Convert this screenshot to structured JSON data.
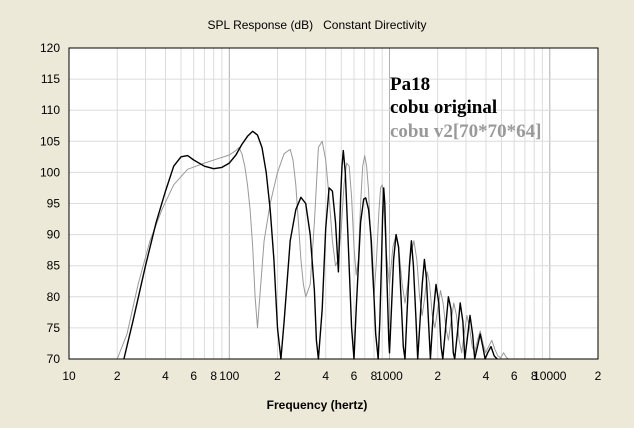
{
  "chart_data": {
    "type": "line",
    "title": "SPL Response (dB)   Constant Directivity",
    "xlabel": "Frequency (hertz)",
    "ylabel": "",
    "xscale": "log",
    "xlim": [
      10,
      20000
    ],
    "ylim": [
      70,
      120
    ],
    "yticks": [
      70,
      75,
      80,
      85,
      90,
      95,
      100,
      105,
      110,
      115,
      120
    ],
    "xtick_labels": [
      {
        "value": 10,
        "label": "10"
      },
      {
        "value": 20,
        "label": "2"
      },
      {
        "value": 40,
        "label": "4"
      },
      {
        "value": 60,
        "label": "6"
      },
      {
        "value": 80,
        "label": "8"
      },
      {
        "value": 100,
        "label": "100"
      },
      {
        "value": 200,
        "label": "2"
      },
      {
        "value": 400,
        "label": "4"
      },
      {
        "value": 600,
        "label": "6"
      },
      {
        "value": 800,
        "label": "8"
      },
      {
        "value": 1000,
        "label": "1000"
      },
      {
        "value": 2000,
        "label": "2"
      },
      {
        "value": 4000,
        "label": "4"
      },
      {
        "value": 6000,
        "label": "6"
      },
      {
        "value": 8000,
        "label": "8"
      },
      {
        "value": 10000,
        "label": "10000"
      },
      {
        "value": 20000,
        "label": "2"
      }
    ],
    "grid": true,
    "legend_title": "Pa18",
    "legend_position": "top-right",
    "series": [
      {
        "name": "cobu original",
        "color": "#000000",
        "points": [
          [
            22,
            70
          ],
          [
            25,
            76
          ],
          [
            30,
            85
          ],
          [
            35,
            92
          ],
          [
            40,
            97
          ],
          [
            45,
            101
          ],
          [
            50,
            102.5
          ],
          [
            55,
            102.7
          ],
          [
            60,
            102
          ],
          [
            70,
            101
          ],
          [
            80,
            100.6
          ],
          [
            90,
            100.8
          ],
          [
            100,
            101.5
          ],
          [
            110,
            102.8
          ],
          [
            120,
            104.5
          ],
          [
            130,
            105.8
          ],
          [
            140,
            106.6
          ],
          [
            150,
            106
          ],
          [
            160,
            104
          ],
          [
            170,
            100
          ],
          [
            180,
            94
          ],
          [
            190,
            86
          ],
          [
            200,
            75
          ],
          [
            210,
            70
          ],
          [
            220,
            76
          ],
          [
            240,
            89
          ],
          [
            260,
            94
          ],
          [
            280,
            96
          ],
          [
            300,
            95
          ],
          [
            320,
            90
          ],
          [
            340,
            81
          ],
          [
            350,
            73
          ],
          [
            360,
            70
          ],
          [
            380,
            78
          ],
          [
            400,
            91
          ],
          [
            420,
            97.5
          ],
          [
            440,
            97
          ],
          [
            460,
            92
          ],
          [
            480,
            84
          ],
          [
            495,
            96
          ],
          [
            505,
            101
          ],
          [
            515,
            103.5
          ],
          [
            530,
            100
          ],
          [
            550,
            90
          ],
          [
            580,
            75
          ],
          [
            600,
            70
          ],
          [
            620,
            78
          ],
          [
            660,
            92
          ],
          [
            690,
            95.7
          ],
          [
            710,
            95.9
          ],
          [
            740,
            94
          ],
          [
            770,
            89
          ],
          [
            800,
            80
          ],
          [
            820,
            74
          ],
          [
            850,
            70
          ],
          [
            870,
            76
          ],
          [
            890,
            85
          ],
          [
            905,
            93
          ],
          [
            920,
            97.5
          ],
          [
            935,
            95
          ],
          [
            960,
            84
          ],
          [
            990,
            73
          ],
          [
            1000,
            71
          ],
          [
            1020,
            76
          ],
          [
            1060,
            86
          ],
          [
            1100,
            90
          ],
          [
            1140,
            88
          ],
          [
            1180,
            80
          ],
          [
            1220,
            72
          ],
          [
            1250,
            70
          ],
          [
            1290,
            78
          ],
          [
            1330,
            85
          ],
          [
            1370,
            89
          ],
          [
            1410,
            85
          ],
          [
            1460,
            77
          ],
          [
            1500,
            70
          ],
          [
            1550,
            76
          ],
          [
            1600,
            82
          ],
          [
            1650,
            86
          ],
          [
            1700,
            83
          ],
          [
            1750,
            76
          ],
          [
            1800,
            70
          ],
          [
            1870,
            77
          ],
          [
            1950,
            82
          ],
          [
            2030,
            79
          ],
          [
            2100,
            72
          ],
          [
            2150,
            70
          ],
          [
            2240,
            75
          ],
          [
            2330,
            80
          ],
          [
            2420,
            78
          ],
          [
            2500,
            71
          ],
          [
            2550,
            70
          ],
          [
            2650,
            74
          ],
          [
            2760,
            79
          ],
          [
            2870,
            76
          ],
          [
            2950,
            70
          ],
          [
            3050,
            73
          ],
          [
            3180,
            77
          ],
          [
            3300,
            74
          ],
          [
            3400,
            70
          ],
          [
            3540,
            72
          ],
          [
            3680,
            74
          ],
          [
            3820,
            72
          ],
          [
            3950,
            70
          ],
          [
            4100,
            71
          ],
          [
            4300,
            72
          ],
          [
            4500,
            70.5
          ],
          [
            4700,
            70
          ]
        ]
      },
      {
        "name": "cobu v2[70*70*64]",
        "color": "#999999",
        "points": [
          [
            20,
            70
          ],
          [
            23,
            74
          ],
          [
            27,
            82
          ],
          [
            32,
            89
          ],
          [
            38,
            94
          ],
          [
            45,
            98
          ],
          [
            55,
            100.5
          ],
          [
            70,
            101.5
          ],
          [
            85,
            102.2
          ],
          [
            100,
            102.8
          ],
          [
            110,
            103.5
          ],
          [
            115,
            104
          ],
          [
            120,
            103
          ],
          [
            125,
            101
          ],
          [
            130,
            98
          ],
          [
            135,
            94
          ],
          [
            140,
            88
          ],
          [
            145,
            80
          ],
          [
            150,
            75
          ],
          [
            155,
            80
          ],
          [
            165,
            89
          ],
          [
            180,
            95
          ],
          [
            200,
            100
          ],
          [
            220,
            103
          ],
          [
            240,
            103.7
          ],
          [
            250,
            102
          ],
          [
            260,
            98
          ],
          [
            270,
            92
          ],
          [
            280,
            86
          ],
          [
            290,
            82
          ],
          [
            300,
            80
          ],
          [
            320,
            82
          ],
          [
            340,
            92
          ],
          [
            360,
            104
          ],
          [
            380,
            105
          ],
          [
            400,
            102
          ],
          [
            420,
            96
          ],
          [
            440,
            89
          ],
          [
            460,
            85
          ],
          [
            480,
            86
          ],
          [
            500,
            91
          ],
          [
            520,
            98
          ],
          [
            540,
            101.5
          ],
          [
            560,
            101
          ],
          [
            580,
            96
          ],
          [
            600,
            88
          ],
          [
            620,
            83.5
          ],
          [
            640,
            86
          ],
          [
            660,
            95
          ],
          [
            680,
            101
          ],
          [
            700,
            102.7
          ],
          [
            720,
            101
          ],
          [
            740,
            97
          ],
          [
            760,
            90
          ],
          [
            780,
            84
          ],
          [
            800,
            80
          ],
          [
            830,
            86
          ],
          [
            860,
            94
          ],
          [
            880,
            97.5
          ],
          [
            900,
            98
          ],
          [
            920,
            95
          ],
          [
            950,
            88
          ],
          [
            980,
            84
          ],
          [
            1000,
            82
          ],
          [
            1050,
            88
          ],
          [
            1100,
            90
          ],
          [
            1150,
            87
          ],
          [
            1200,
            82
          ],
          [
            1250,
            79
          ],
          [
            1300,
            82
          ],
          [
            1360,
            87
          ],
          [
            1420,
            89
          ],
          [
            1480,
            86
          ],
          [
            1540,
            80
          ],
          [
            1600,
            77
          ],
          [
            1660,
            80
          ],
          [
            1720,
            84
          ],
          [
            1780,
            82
          ],
          [
            1850,
            77
          ],
          [
            1920,
            75
          ],
          [
            2000,
            78
          ],
          [
            2080,
            81
          ],
          [
            2160,
            79
          ],
          [
            2250,
            75
          ],
          [
            2330,
            73
          ],
          [
            2420,
            76
          ],
          [
            2520,
            79
          ],
          [
            2620,
            77
          ],
          [
            2720,
            73
          ],
          [
            2820,
            71
          ],
          [
            2920,
            74
          ],
          [
            3040,
            77
          ],
          [
            3160,
            75
          ],
          [
            3280,
            72
          ],
          [
            3400,
            71
          ],
          [
            3540,
            73
          ],
          [
            3680,
            74.5
          ],
          [
            3830,
            72.5
          ],
          [
            3980,
            71
          ],
          [
            4150,
            72
          ],
          [
            4350,
            73
          ],
          [
            4550,
            71.5
          ],
          [
            4750,
            70.5
          ],
          [
            4950,
            70.2
          ],
          [
            5150,
            71
          ],
          [
            5350,
            70.3
          ],
          [
            5500,
            70
          ]
        ]
      }
    ]
  }
}
